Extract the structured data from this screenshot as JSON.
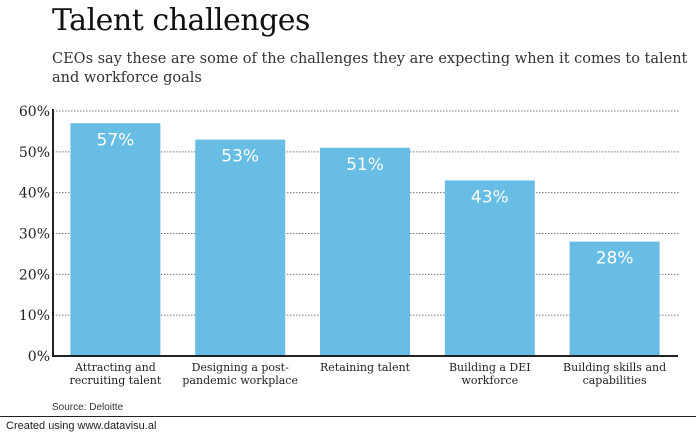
{
  "chart_data": {
    "type": "bar",
    "title": "Talent challenges",
    "subtitle": "CEOs say these are some of the challenges they are expecting when it comes to talent and workforce goals",
    "categories": [
      [
        "Attracting and",
        "recruiting talent"
      ],
      [
        "Designing a post-",
        "pandemic workplace"
      ],
      [
        "Retaining talent"
      ],
      [
        "Building a DEI",
        "workforce"
      ],
      [
        "Building skills and",
        "capabilities"
      ]
    ],
    "values": [
      57,
      53,
      51,
      43,
      28
    ],
    "data_labels": [
      "57%",
      "53%",
      "51%",
      "43%",
      "28%"
    ],
    "xlabel": "",
    "ylabel": "",
    "ylim": [
      0,
      60
    ],
    "yticks": [
      0,
      10,
      20,
      30,
      40,
      50,
      60
    ],
    "ytick_labels": [
      "0%",
      "10%",
      "20%",
      "30%",
      "40%",
      "50%",
      "60%"
    ],
    "grid": "horizontal dotted",
    "legend": "none",
    "bar_color": "#67bde3",
    "label_color": "#ffffff"
  },
  "source": "Source: Deloitte",
  "footer": "Created using www.datavisu.al"
}
